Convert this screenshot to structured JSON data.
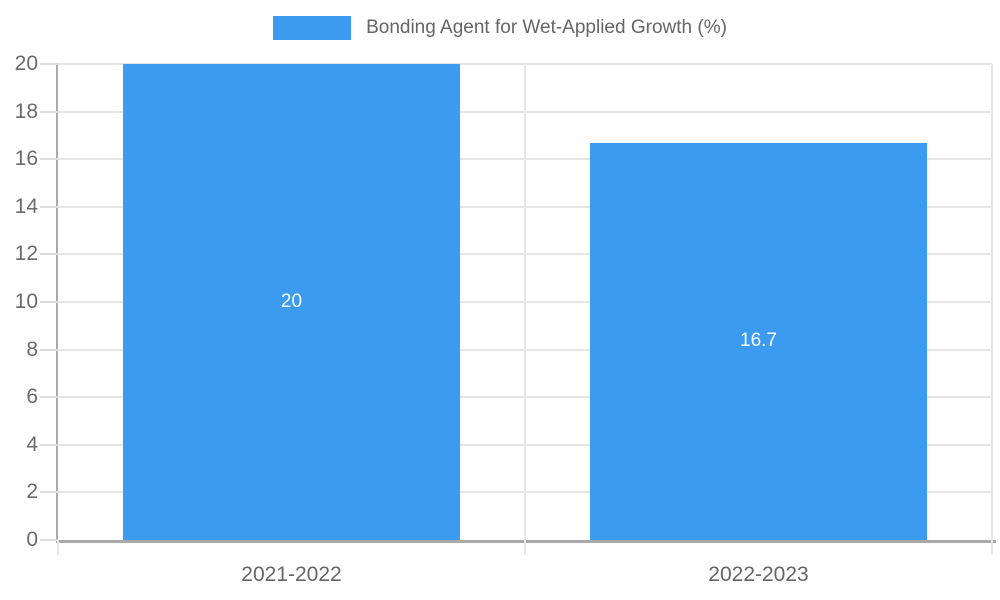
{
  "chart_data": {
    "type": "bar",
    "title": "Bonding Agent for Wet-Applied Growth (%)",
    "legend_position": "top",
    "categories": [
      "2021-2022",
      "2022-2023"
    ],
    "series": [
      {
        "name": "Bonding Agent for Wet-Applied Growth (%)",
        "values": [
          20,
          16.7
        ],
        "data_labels": [
          "20",
          "16.7"
        ]
      }
    ],
    "xlabel": "",
    "ylabel": "",
    "ylim": [
      0,
      20
    ],
    "ytick_step": 2,
    "grid": true,
    "bar_width_ratio": 0.72,
    "colors": {
      "bar": "#3b9bee",
      "bar_label_text": "#ffffff",
      "gridline": "#e6e6e6",
      "axis_line": "#a9a9a9",
      "tick_mark": "#dcdcdc",
      "tick_text": "#6b6b6b",
      "legend_text": "#666666"
    }
  }
}
